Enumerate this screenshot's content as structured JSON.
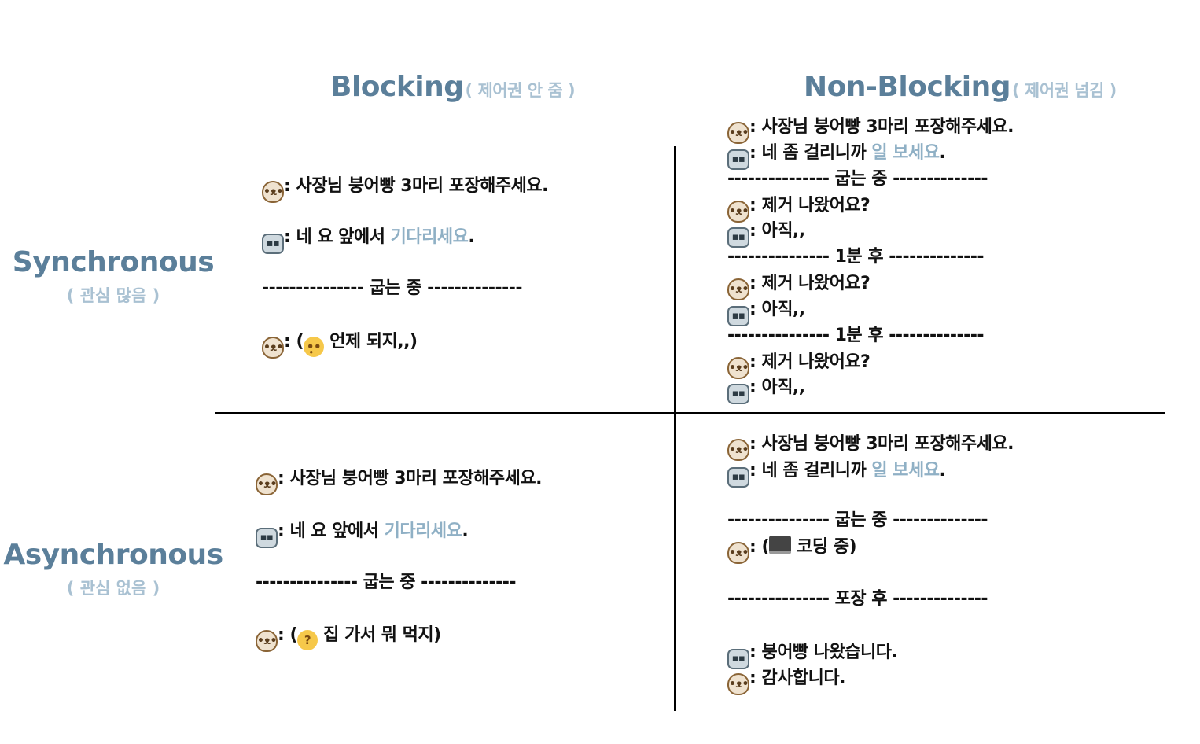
{
  "columns": {
    "blocking": {
      "title": "Blocking",
      "sub": "( 제어권 안 줌 )"
    },
    "nonblocking": {
      "title": "Non-Blocking",
      "sub": "( 제어권 넘김 )"
    }
  },
  "rows": {
    "sync": {
      "title": "Synchronous",
      "sub": "( 관심 많음 )"
    },
    "async": {
      "title": "Asynchronous",
      "sub": "( 관심 없음 )"
    }
  },
  "colors": {
    "heading": "#5b7f9a",
    "subheading": "#a9c1d2",
    "highlight": "#8fb0c5"
  },
  "icons": {
    "customer": "dog-face-icon",
    "owner": "robot-face-icon"
  },
  "text": {
    "order": ": 사장님 붕어빵 3마리 포장해주세요.",
    "wait_prefix": ": 네 요 앞에서 ",
    "wait_hl": "기다리세요",
    "period": ".",
    "busy_prefix": ": 네 좀 걸리니까 ",
    "busy_hl": "일 보세요",
    "div_baking": "--------------- 굽는 중 --------------",
    "div_1min": "--------------- 1분 후 --------------",
    "div_packed": "--------------- 포장 후 --------------",
    "ready_q": ": 제거 나왔어요?",
    "not_yet": ": 아직,,",
    "sb_thought": " 언제 되지,,)",
    "aa_thought": " 집 가서 뭐 먹지)",
    "an_thought": " 코딩 중)",
    "open_paren": ": (",
    "done": ": 붕어빵 나왔습니다.",
    "thanks": ": 감사합니다."
  }
}
